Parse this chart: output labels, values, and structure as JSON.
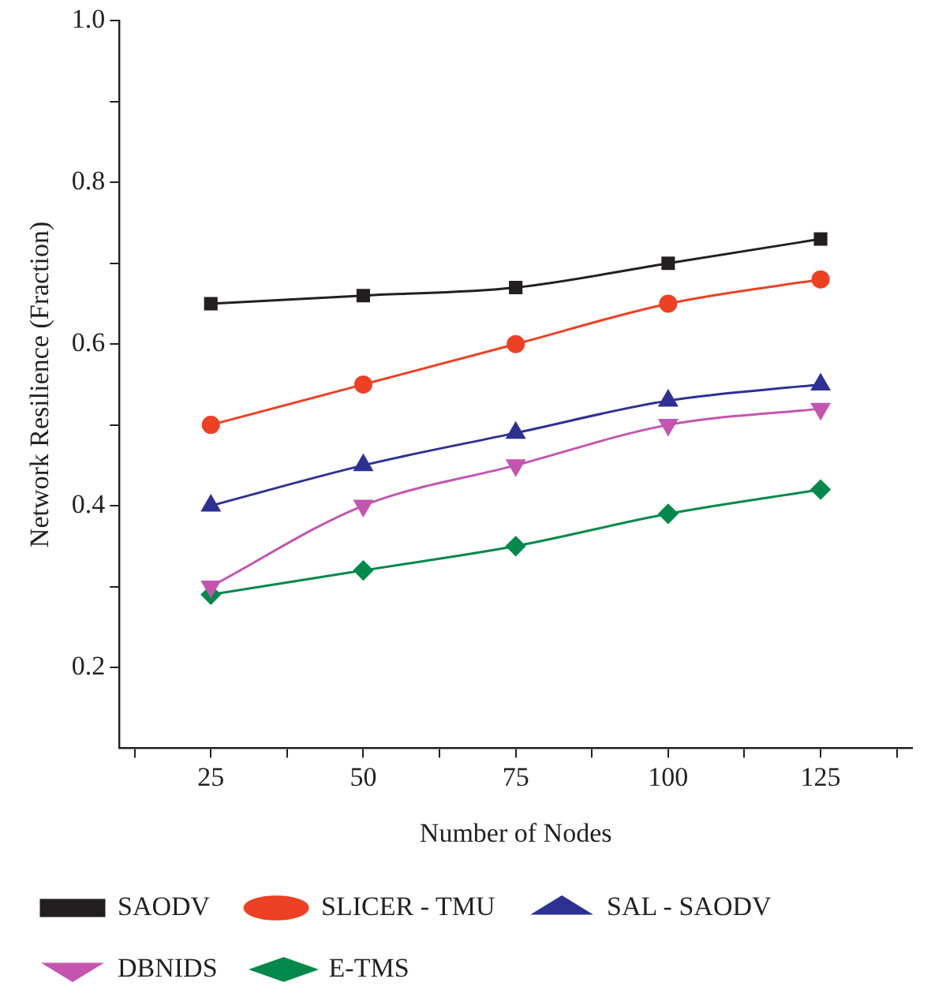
{
  "chart_data": {
    "type": "line",
    "xlabel": "Number of Nodes",
    "ylabel": "Network Resilience (Fraction)",
    "x": [
      25,
      50,
      75,
      100,
      125
    ],
    "xlim": [
      10,
      140
    ],
    "xticks": [
      {
        "value": 12.5,
        "label": null
      },
      25,
      {
        "value": 37.5,
        "label": null
      },
      50,
      {
        "value": 62.5,
        "label": null
      },
      75,
      {
        "value": 87.5,
        "label": null
      },
      100,
      {
        "value": 112.5,
        "label": null
      },
      125,
      {
        "value": 137.5,
        "label": null
      }
    ],
    "ylim": [
      0.1,
      1.0
    ],
    "yticks": [
      0.2,
      {
        "value": 0.3,
        "label": null
      },
      0.4,
      {
        "value": 0.5,
        "label": null
      },
      0.6,
      {
        "value": 0.7,
        "label": null
      },
      0.8,
      {
        "value": 0.9,
        "label": null
      },
      {
        "value": 1.0,
        "label": "1.0"
      }
    ],
    "grid": false,
    "legend": "bottom",
    "line_style": "solid",
    "series": [
      {
        "name": "SAODV",
        "color": "#231f20",
        "marker": "square",
        "values": [
          0.65,
          0.66,
          0.67,
          0.7,
          0.73
        ]
      },
      {
        "name": "SLICER - TMU",
        "color": "#ee4023",
        "marker": "circle",
        "values": [
          0.5,
          0.55,
          0.6,
          0.65,
          0.68
        ]
      },
      {
        "name": "SAL - SAODV",
        "color": "#2e3192",
        "marker": "triangle",
        "values": [
          0.4,
          0.45,
          0.49,
          0.53,
          0.55
        ]
      },
      {
        "name": "DBNIDS",
        "color": "#c355b0",
        "marker": "triangle-down",
        "values": [
          0.3,
          0.4,
          0.45,
          0.5,
          0.52
        ]
      },
      {
        "name": "E-TMS",
        "color": "#00894a",
        "marker": "diamond",
        "values": [
          0.29,
          0.32,
          0.35,
          0.39,
          0.42
        ]
      }
    ]
  }
}
